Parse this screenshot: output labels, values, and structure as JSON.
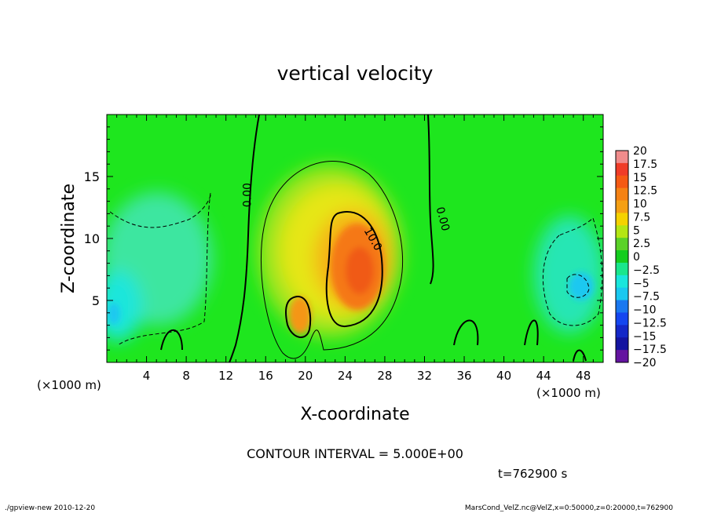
{
  "chart_data": {
    "type": "heatmap",
    "title": "vertical velocity",
    "xlabel": "X-coordinate",
    "ylabel": "Z-coordinate",
    "x_unit": "(×1000 m)",
    "xlim": [
      0,
      50
    ],
    "ylim": [
      0,
      20
    ],
    "x_ticks": [
      4,
      8,
      12,
      16,
      20,
      24,
      28,
      32,
      36,
      40,
      44,
      48
    ],
    "y_ticks": [
      5,
      10,
      15
    ],
    "colorbar": {
      "levels": [
        20,
        17.5,
        15,
        12.5,
        10,
        7.5,
        5,
        2.5,
        0,
        -2.5,
        -5,
        -7.5,
        -10,
        -12.5,
        -15,
        -17.5,
        -20
      ],
      "labels": [
        "20",
        "17.5",
        "15",
        "12.5",
        "10",
        "7.5",
        "5",
        "2.5",
        "0",
        "−2.5",
        "−5",
        "−7.5",
        "−10",
        "−12.5",
        "−15",
        "−17.5",
        "−20"
      ],
      "colors": [
        "#f08c8c",
        "#f03c28",
        "#f55a14",
        "#f58214",
        "#f5a014",
        "#f5d200",
        "#b4e614",
        "#5ad228",
        "#14cd1e",
        "#19e68c",
        "#19e6dc",
        "#19c8f0",
        "#1978f0",
        "#1446f0",
        "#1428c8",
        "#1414a0",
        "#6414a0"
      ]
    },
    "contour_labels": [
      "0.00",
      "10.0",
      "0.00"
    ],
    "contour_interval_text": "CONTOUR INTERVAL = 5.000E+00",
    "time_text": "t=762900 s"
  },
  "footer": {
    "left": "./gpview-new  2010-12-20",
    "right": "MarsCond_VelZ.nc@VelZ,x=0:50000,z=0:20000,t=762900"
  }
}
